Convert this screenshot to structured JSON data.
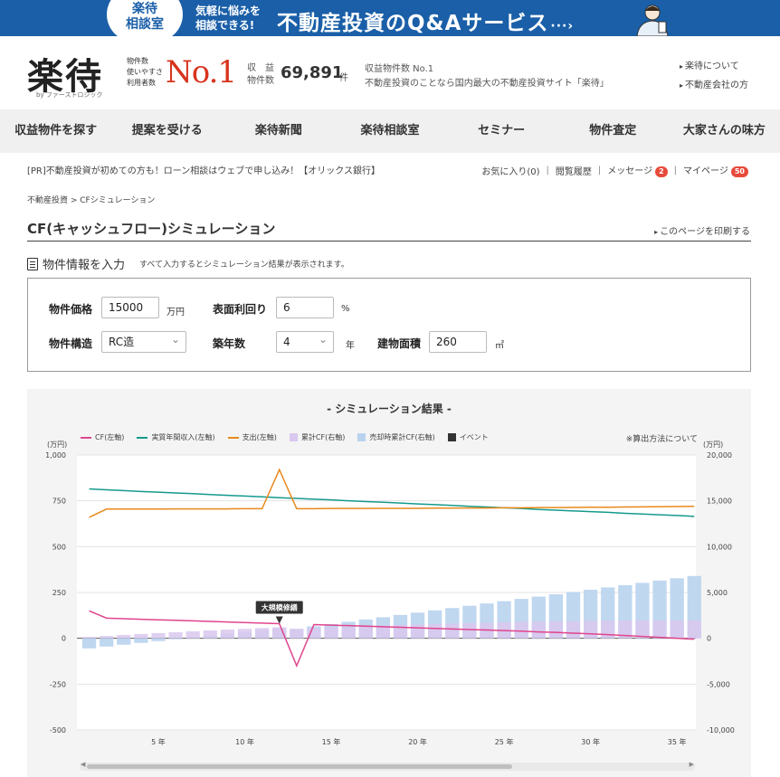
{
  "banner": {
    "badge_line1": "楽待",
    "badge_line2": "相談室",
    "sub_line1": "気軽に悩みを",
    "sub_line2": "相談できる!",
    "main": "不動産投資のQ&Aサービス",
    "arrow": "···›"
  },
  "header": {
    "logo": "楽待",
    "logo_by": "by ファーストロジック",
    "rank_labels": [
      "物件数",
      "使いやすさ",
      "利用者数"
    ],
    "no1": "No.1",
    "count_label_1": "収　益",
    "count_label_2": "物件数",
    "count_value": "69,891",
    "count_unit": "件",
    "tagline_1": "収益物件数 No.1",
    "tagline_2": "不動産投資のことなら国内最大の不動産投資サイト「楽待」",
    "link_about": "楽待について",
    "link_company": "不動産会社の方"
  },
  "nav": [
    "収益物件を探す",
    "提案を受ける",
    "楽待新聞",
    "楽待相談室",
    "セミナー",
    "物件査定",
    "大家さんの味方"
  ],
  "subbar": {
    "pr": "[PR]不動産投資が初めての方も！ローン相談はウェブで申し込み！【オリックス銀行】",
    "favorites": "お気に入り(0)",
    "history": "閲覧履歴",
    "messages": "メッセージ",
    "messages_count": "2",
    "mypage": "マイページ",
    "mypage_count": "50",
    "sep": "|"
  },
  "breadcrumb": "不動産投資 > CFシミュレーション",
  "page_title": "CF(キャッシュフロー)シミュレーション",
  "print_link": "このページを印刷する",
  "section": {
    "title": "物件情報を入力",
    "note": "すべて入力するとシミュレーション結果が表示されます。"
  },
  "form": {
    "price_label": "物件価格",
    "price_value": "15000",
    "price_unit": "万円",
    "yield_label": "表面利回り",
    "yield_value": "6",
    "yield_unit": "%",
    "structure_label": "物件構造",
    "structure_value": "RC造",
    "age_label": "築年数",
    "age_value": "4",
    "age_unit": "年",
    "area_label": "建物面積",
    "area_value": "260",
    "area_unit": "㎡"
  },
  "chart_title": "- シミュレーション結果 -",
  "calc_link": "※算出方法について",
  "event_label": "大規模修繕",
  "chart_data": {
    "type": "line+bar",
    "x": [
      1,
      2,
      3,
      4,
      5,
      6,
      7,
      8,
      9,
      10,
      11,
      12,
      13,
      14,
      15,
      16,
      17,
      18,
      19,
      20,
      21,
      22,
      23,
      24,
      25,
      26,
      27,
      28,
      29,
      30,
      31,
      32,
      33,
      34,
      35,
      36
    ],
    "x_ticks": [
      5,
      10,
      15,
      20,
      25,
      30,
      35
    ],
    "x_tick_labels": [
      "5 年",
      "10 年",
      "15 年",
      "20 年",
      "25 年",
      "30 年",
      "35 年"
    ],
    "unit_left": "(万円)",
    "unit_right": "(万円)",
    "ylim_left": [
      -500,
      1000
    ],
    "ylim_right": [
      -10000,
      20000
    ],
    "left_ticks": [
      "1,000",
      "750",
      "500",
      "250",
      "0",
      "-250",
      "-500"
    ],
    "right_ticks": [
      "20,000",
      "15,000",
      "10,000",
      "5,000",
      "0",
      "-5,000",
      "-10,000"
    ],
    "series": [
      {
        "name": "CF(左軸)",
        "color": "#e0458c",
        "type": "line",
        "values": [
          150,
          110,
          107,
          104,
          101,
          98,
          95,
          92,
          89,
          86,
          83,
          80,
          -150,
          75,
          72,
          69,
          66,
          63,
          60,
          57,
          54,
          51,
          48,
          45,
          42,
          39,
          35,
          32,
          28,
          24,
          20,
          15,
          10,
          5,
          0,
          -5
        ]
      },
      {
        "name": "実質年間収入(左軸)",
        "color": "#159a8c",
        "type": "line",
        "values": [
          815,
          810,
          806,
          801,
          797,
          793,
          789,
          784,
          780,
          776,
          772,
          767,
          763,
          759,
          755,
          750,
          746,
          742,
          738,
          733,
          729,
          725,
          720,
          716,
          712,
          708,
          703,
          699,
          695,
          691,
          687,
          682,
          678,
          674,
          670,
          665
        ]
      },
      {
        "name": "支出(左軸)",
        "color": "#e8891b",
        "type": "line",
        "values": [
          660,
          705,
          705,
          705,
          705,
          706,
          706,
          706,
          706,
          707,
          707,
          920,
          707,
          707,
          708,
          708,
          708,
          709,
          709,
          709,
          710,
          710,
          711,
          711,
          712,
          712,
          713,
          713,
          714,
          715,
          715,
          716,
          717,
          718,
          719,
          720
        ]
      },
      {
        "name": "累計CF(右軸)",
        "color": "#d9c8ef",
        "type": "bar",
        "values": [
          150,
          260,
          367,
          471,
          572,
          670,
          765,
          857,
          946,
          1032,
          1115,
          1195,
          1045,
          1120,
          1192,
          1261,
          1327,
          1390,
          1450,
          1507,
          1561,
          1612,
          1660,
          1705,
          1747,
          1786,
          1821,
          1853,
          1881,
          1905,
          1925,
          1940,
          1950,
          1955,
          1955,
          1950
        ]
      },
      {
        "name": "売却時累計CF(右軸)",
        "color": "#b9d3ee",
        "type": "bar",
        "values": [
          -1100,
          -900,
          -700,
          -500,
          -300,
          -100,
          100,
          300,
          500,
          700,
          900,
          1100,
          1000,
          1300,
          1550,
          1800,
          2050,
          2300,
          2550,
          2800,
          3050,
          3300,
          3550,
          3800,
          4050,
          4300,
          4550,
          4800,
          5050,
          5300,
          5550,
          5800,
          6050,
          6300,
          6550,
          6800
        ]
      },
      {
        "name": "イベント",
        "color": "#333333",
        "type": "event",
        "x": 12
      }
    ],
    "grid": true,
    "legend": "top"
  }
}
